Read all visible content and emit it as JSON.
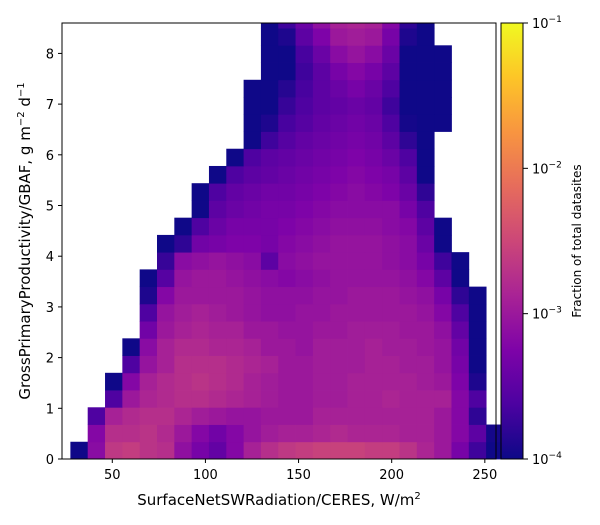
{
  "chart_data": {
    "type": "heatmap",
    "xlabel": "SurfaceNetSWRadiation/CERES,  W/m",
    "xlabel_sup": "2",
    "ylabel": "GrossPrimaryProductivity/GBAF,  g m",
    "ylabel_sup1": "−2",
    "ylabel_mid": " d",
    "ylabel_sup2": "−1",
    "xlim": [
      23,
      256
    ],
    "ylim": [
      0,
      8.6
    ],
    "x_ticks": [
      50,
      100,
      150,
      200,
      250
    ],
    "y_ticks": [
      0,
      1,
      2,
      3,
      4,
      5,
      6,
      7,
      8
    ],
    "x_bin_edges_start": 27.5,
    "x_bin_width": 9.3,
    "y_bin_height": 0.34,
    "colorbar": {
      "label": "Fraction of total datasites",
      "scale": "log",
      "range": [
        0.0001,
        0.1
      ],
      "tick_labels": [
        {
          "base": "10",
          "exp": "−4"
        },
        {
          "base": "10",
          "exp": "−3"
        },
        {
          "base": "10",
          "exp": "−2"
        },
        {
          "base": "10",
          "exp": "−1"
        }
      ],
      "colormap": "plasma"
    },
    "grid_note": "rows listed from y=0 upward; each value is log10(fraction); null = empty bin; columns start at x_bin_edges_start",
    "log10_values": [
      [
        -3.99,
        -3.15,
        -2.65,
        -2.6,
        -2.7,
        -2.75,
        -3.1,
        -3.3,
        -3.45,
        -3.2,
        -2.9,
        -2.75,
        -2.65,
        -2.6,
        -2.55,
        -2.55,
        -2.55,
        -2.6,
        -2.6,
        -2.7,
        -2.85,
        -3.0,
        -3.3,
        -3.7,
        -3.99,
        -3.99
      ],
      [
        null,
        -3.2,
        -2.75,
        -2.75,
        -2.7,
        -2.8,
        -3.0,
        -3.2,
        -3.35,
        -3.2,
        -3.05,
        -2.95,
        -2.9,
        -2.9,
        -2.85,
        -2.8,
        -2.85,
        -2.85,
        -2.85,
        -2.9,
        -2.9,
        -3.0,
        -3.2,
        -3.5,
        -3.95,
        -3.99
      ],
      [
        null,
        -3.6,
        -2.9,
        -2.8,
        -2.75,
        -2.75,
        -2.85,
        -2.95,
        -3.0,
        -3.05,
        -3.05,
        -3.0,
        -3.0,
        -3.0,
        -2.9,
        -2.9,
        -2.9,
        -2.9,
        -2.9,
        -2.9,
        -2.9,
        -3.0,
        -3.2,
        -3.8,
        null,
        null
      ],
      [
        null,
        null,
        -3.6,
        -3.0,
        -2.85,
        -2.8,
        -2.75,
        -2.75,
        -2.8,
        -2.85,
        -2.9,
        -2.95,
        -3.0,
        -3.0,
        -2.95,
        -2.95,
        -2.9,
        -2.9,
        -2.85,
        -2.9,
        -2.9,
        -2.9,
        -3.2,
        -3.6,
        null,
        null
      ],
      [
        null,
        null,
        -3.99,
        -3.2,
        -2.9,
        -2.8,
        -2.75,
        -2.7,
        -2.75,
        -2.8,
        -2.9,
        -2.95,
        -3.0,
        -3.0,
        -2.95,
        -2.95,
        -2.9,
        -2.9,
        -2.9,
        -2.9,
        -2.95,
        -3.0,
        -3.25,
        -3.9,
        null,
        null
      ],
      [
        null,
        null,
        null,
        -3.6,
        -3.05,
        -2.9,
        -2.75,
        -2.75,
        -2.75,
        -2.8,
        -2.85,
        -2.9,
        -3.0,
        -3.0,
        -2.95,
        -2.95,
        -2.95,
        -2.9,
        -2.9,
        -2.95,
        -2.95,
        -3.05,
        -3.3,
        -3.99,
        null,
        null
      ],
      [
        null,
        null,
        null,
        -3.99,
        -3.15,
        -2.9,
        -2.8,
        -2.8,
        -2.85,
        -2.85,
        -2.9,
        -3.0,
        -3.0,
        -3.05,
        -2.95,
        -2.95,
        -2.95,
        -2.9,
        -2.95,
        -2.95,
        -3.0,
        -3.05,
        -3.35,
        -3.99,
        null,
        null
      ],
      [
        null,
        null,
        null,
        null,
        -3.35,
        -3.0,
        -2.9,
        -2.85,
        -2.9,
        -2.9,
        -3.0,
        -3.0,
        -3.05,
        -3.05,
        -3.0,
        -3.0,
        -2.95,
        -2.95,
        -2.95,
        -3.0,
        -3.0,
        -3.1,
        -3.45,
        -3.99,
        null,
        null
      ],
      [
        null,
        null,
        null,
        null,
        -3.6,
        -3.05,
        -2.95,
        -2.9,
        -2.95,
        -3.0,
        -3.05,
        -3.1,
        -3.1,
        -3.05,
        -3.05,
        -3.0,
        -3.0,
        -3.0,
        -3.0,
        -3.0,
        -3.05,
        -3.2,
        -3.6,
        -3.99,
        null,
        null
      ],
      [
        null,
        null,
        null,
        null,
        -3.9,
        -3.2,
        -3.0,
        -3.0,
        -3.0,
        -3.0,
        -3.05,
        -3.1,
        -3.1,
        -3.1,
        -3.05,
        -3.05,
        -3.0,
        -3.0,
        -3.0,
        -3.05,
        -3.1,
        -3.3,
        -3.8,
        -3.99,
        null,
        null
      ],
      [
        null,
        null,
        null,
        null,
        -3.99,
        -3.55,
        -3.05,
        -3.0,
        -3.0,
        -3.05,
        -3.1,
        -3.15,
        -3.2,
        -3.15,
        -3.1,
        -3.05,
        -3.05,
        -3.05,
        -3.05,
        -3.1,
        -3.2,
        -3.5,
        -3.99,
        null,
        null,
        null
      ],
      [
        null,
        null,
        null,
        null,
        null,
        -3.75,
        -3.15,
        -3.1,
        -3.05,
        -3.1,
        -3.15,
        -3.5,
        -3.15,
        -3.1,
        -3.05,
        -3.05,
        -3.05,
        -3.05,
        -3.1,
        -3.15,
        -3.3,
        -3.7,
        -3.99,
        null,
        null,
        null
      ],
      [
        null,
        null,
        null,
        null,
        null,
        -3.99,
        -3.8,
        -3.35,
        -3.3,
        -3.25,
        -3.25,
        -3.3,
        -3.2,
        -3.15,
        -3.1,
        -3.05,
        -3.05,
        -3.05,
        -3.1,
        -3.15,
        -3.4,
        -3.99,
        null,
        null,
        null,
        null
      ],
      [
        null,
        null,
        null,
        null,
        null,
        null,
        -3.99,
        -3.6,
        -3.4,
        -3.3,
        -3.3,
        -3.3,
        -3.25,
        -3.2,
        -3.15,
        -3.1,
        -3.1,
        -3.1,
        -3.15,
        -3.2,
        -3.5,
        -3.99,
        null,
        null,
        null,
        null
      ],
      [
        null,
        null,
        null,
        null,
        null,
        null,
        null,
        -3.99,
        -3.5,
        -3.4,
        -3.35,
        -3.3,
        -3.3,
        -3.25,
        -3.2,
        -3.15,
        -3.15,
        -3.15,
        -3.15,
        -3.3,
        -3.6,
        null,
        null,
        null,
        null,
        null
      ],
      [
        null,
        null,
        null,
        null,
        null,
        null,
        null,
        -3.99,
        -3.6,
        -3.45,
        -3.4,
        -3.35,
        -3.35,
        -3.3,
        -3.25,
        -3.2,
        -3.15,
        -3.2,
        -3.25,
        -3.4,
        -3.8,
        null,
        null,
        null,
        null,
        null
      ],
      [
        null,
        null,
        null,
        null,
        null,
        null,
        null,
        null,
        -3.99,
        -3.6,
        -3.5,
        -3.45,
        -3.4,
        -3.35,
        -3.3,
        -3.25,
        -3.2,
        -3.25,
        -3.3,
        -3.5,
        -3.99,
        null,
        null,
        null,
        null,
        null
      ],
      [
        null,
        null,
        null,
        null,
        null,
        null,
        null,
        null,
        null,
        -3.99,
        -3.6,
        -3.5,
        -3.45,
        -3.4,
        -3.35,
        -3.3,
        -3.25,
        -3.3,
        -3.4,
        -3.6,
        -3.99,
        null,
        null,
        null,
        null,
        null
      ],
      [
        null,
        null,
        null,
        null,
        null,
        null,
        null,
        null,
        null,
        null,
        -3.99,
        -3.7,
        -3.55,
        -3.45,
        -3.4,
        -3.35,
        -3.3,
        -3.35,
        -3.5,
        -3.8,
        -3.99,
        null,
        null,
        null,
        null,
        null
      ],
      [
        null,
        null,
        null,
        null,
        null,
        null,
        null,
        null,
        null,
        null,
        -3.99,
        -3.9,
        -3.65,
        -3.55,
        -3.45,
        -3.4,
        -3.35,
        -3.4,
        -3.6,
        -3.95,
        -3.99,
        -3.99,
        null,
        null,
        null,
        null
      ],
      [
        null,
        null,
        null,
        null,
        null,
        null,
        null,
        null,
        null,
        null,
        -3.99,
        -3.99,
        -3.75,
        -3.6,
        -3.5,
        -3.45,
        -3.4,
        -3.45,
        -3.7,
        -3.99,
        -3.99,
        -3.99,
        null,
        null,
        null,
        null
      ],
      [
        null,
        null,
        null,
        null,
        null,
        null,
        null,
        null,
        null,
        null,
        -3.99,
        -3.99,
        -3.85,
        -3.65,
        -3.5,
        -3.4,
        -3.3,
        -3.4,
        -3.6,
        -3.99,
        -3.99,
        -3.99,
        null,
        null,
        null,
        null
      ],
      [
        null,
        null,
        null,
        null,
        null,
        null,
        null,
        null,
        null,
        null,
        null,
        -3.99,
        -3.99,
        -3.7,
        -3.5,
        -3.3,
        -3.2,
        -3.3,
        -3.5,
        -3.99,
        -3.99,
        -3.99,
        null,
        null,
        null,
        null
      ],
      [
        null,
        null,
        null,
        null,
        null,
        null,
        null,
        null,
        null,
        null,
        null,
        -3.99,
        -3.99,
        -3.65,
        -3.4,
        -3.15,
        -3.05,
        -3.15,
        -3.4,
        -3.99,
        -3.99,
        -3.99,
        null,
        null,
        null,
        null
      ],
      [
        null,
        null,
        null,
        null,
        null,
        null,
        null,
        null,
        null,
        null,
        null,
        -3.99,
        -3.9,
        -3.5,
        -3.25,
        -3.0,
        -2.95,
        -3.0,
        -3.3,
        -3.9,
        -3.99,
        null,
        null,
        null,
        null,
        null
      ],
      [
        null,
        null,
        null,
        null,
        null,
        null,
        null,
        null,
        null,
        null,
        null,
        -3.99,
        -3.7,
        -3.4,
        -3.1,
        -2.9,
        -2.85,
        -2.9,
        -3.2,
        -3.8,
        -3.99,
        null,
        null,
        null,
        null,
        null
      ]
    ]
  }
}
